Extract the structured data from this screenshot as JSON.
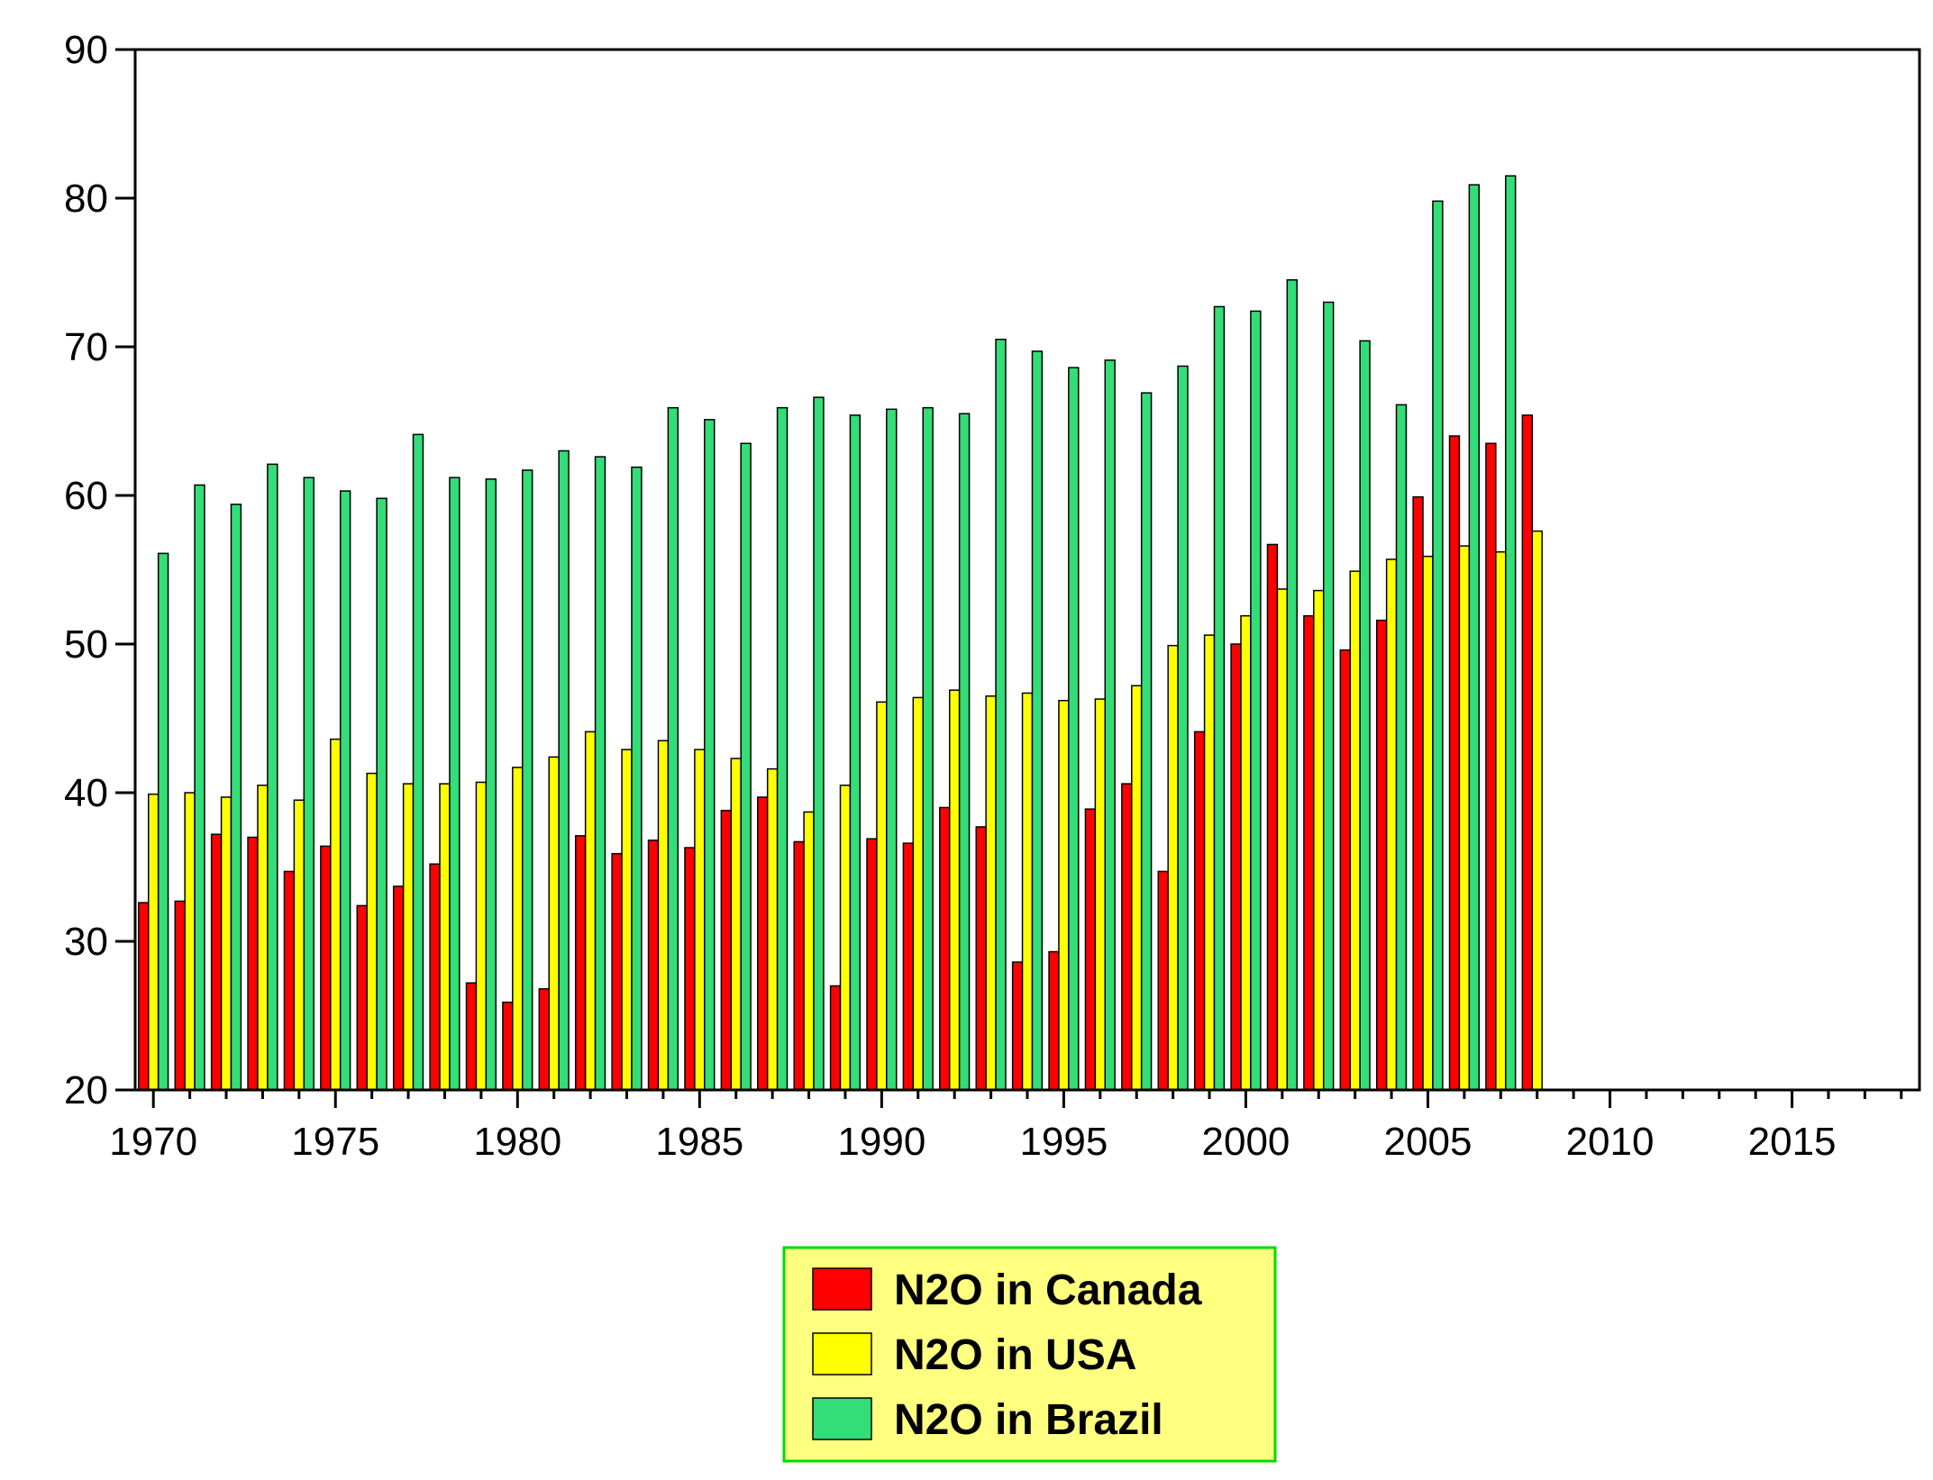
{
  "chart_data": {
    "type": "bar",
    "title": "",
    "xlabel": "",
    "ylabel": "",
    "ylim": [
      20,
      90
    ],
    "yticks": [
      20,
      30,
      40,
      50,
      60,
      70,
      80,
      90
    ],
    "xlim": [
      1969.5,
      2018.5
    ],
    "xticks": [
      1970,
      1975,
      1980,
      1985,
      1990,
      1995,
      2000,
      2005,
      2010,
      2015
    ],
    "legend_position": "bottom-center",
    "legend_background": "#FFFF80",
    "legend_border": "#00DD00",
    "categories": [
      1970,
      1971,
      1972,
      1973,
      1974,
      1975,
      1976,
      1977,
      1978,
      1979,
      1980,
      1981,
      1982,
      1983,
      1984,
      1985,
      1986,
      1987,
      1988,
      1989,
      1990,
      1991,
      1992,
      1993,
      1994,
      1995,
      1996,
      1997,
      1998,
      1999,
      2000,
      2001,
      2002,
      2003,
      2004,
      2005,
      2006,
      2007,
      2008
    ],
    "series": [
      {
        "name": "N2O in Canada",
        "color": "#FF0000",
        "values": [
          32.6,
          32.7,
          37.2,
          37.0,
          34.7,
          36.4,
          32.4,
          33.7,
          35.2,
          27.2,
          25.9,
          26.8,
          37.1,
          35.9,
          36.8,
          36.3,
          38.8,
          39.7,
          36.7,
          27.0,
          36.9,
          36.6,
          39.0,
          37.7,
          28.6,
          29.3,
          38.9,
          40.6,
          34.7,
          44.1,
          50.0,
          56.7,
          51.9,
          49.6,
          51.6,
          59.9,
          64.0,
          63.5,
          65.4
        ]
      },
      {
        "name": "N2O in USA",
        "color": "#FFFF00",
        "values": [
          39.9,
          40.0,
          39.7,
          40.5,
          39.5,
          43.6,
          41.3,
          40.6,
          40.6,
          40.7,
          41.7,
          42.4,
          44.1,
          42.9,
          43.5,
          42.9,
          42.3,
          41.6,
          38.7,
          40.5,
          46.1,
          46.4,
          46.9,
          46.5,
          46.7,
          46.2,
          46.3,
          47.2,
          49.9,
          50.6,
          51.9,
          53.7,
          53.6,
          54.9,
          55.7,
          55.9,
          56.6,
          56.2,
          57.6
        ]
      },
      {
        "name": "N2O in Brazil",
        "color": "#33DD77",
        "values": [
          56.1,
          60.7,
          59.4,
          62.1,
          61.2,
          60.3,
          59.8,
          64.1,
          61.2,
          61.1,
          61.7,
          63.0,
          62.6,
          61.9,
          65.9,
          65.1,
          63.5,
          65.9,
          66.6,
          65.4,
          65.8,
          65.9,
          65.5,
          70.5,
          69.7,
          68.6,
          69.1,
          66.9,
          68.7,
          72.7,
          72.4,
          74.5,
          73.0,
          70.4,
          66.1,
          79.8,
          80.9,
          81.5,
          null
        ]
      }
    ]
  }
}
